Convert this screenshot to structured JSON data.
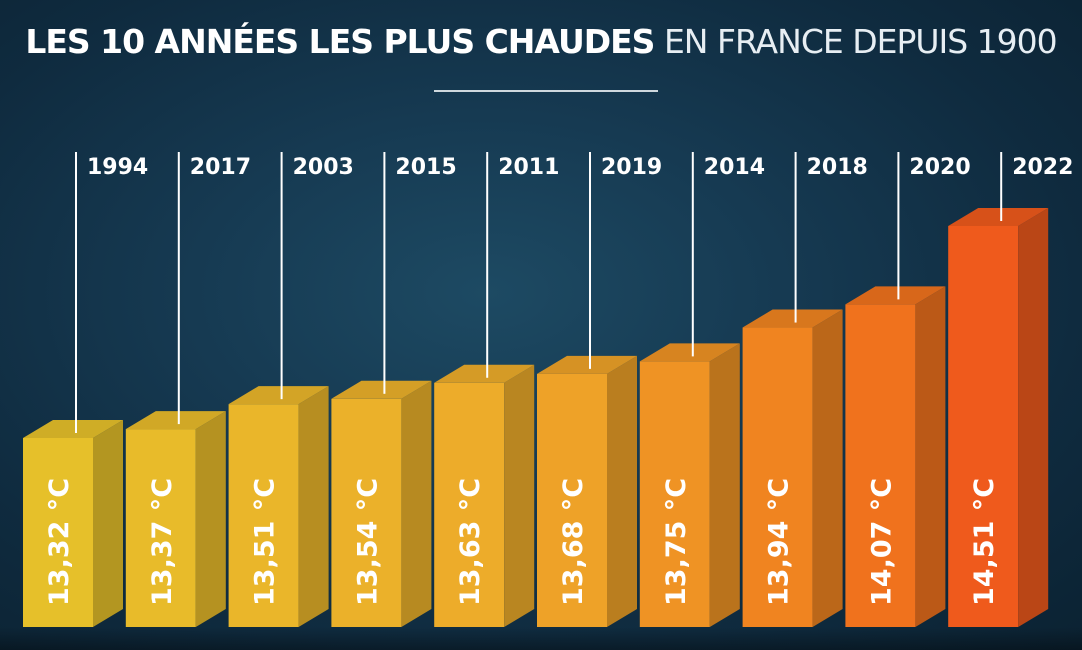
{
  "title": {
    "bold": "LES 10 ANNÉES LES PLUS CHAUDES",
    "light": "EN FRANCE DEPUIS 1900"
  },
  "chart_data": {
    "type": "bar",
    "categories": [
      "1994",
      "2017",
      "2003",
      "2015",
      "2011",
      "2019",
      "2014",
      "2018",
      "2020",
      "2022"
    ],
    "values": [
      13.32,
      13.37,
      13.51,
      13.54,
      13.63,
      13.68,
      13.75,
      13.94,
      14.07,
      14.51
    ],
    "value_labels": [
      "13,32 °C",
      "13,37 °C",
      "13,51 °C",
      "13,54 °C",
      "13,63 °C",
      "13,68 °C",
      "13,75 °C",
      "13,94 °C",
      "14,07 °C",
      "14,51 °C"
    ],
    "unit": "°C",
    "colors": {
      "low": "#e6c02a",
      "mid": "#eea92a",
      "high": "#f07a1e",
      "max": "#ef5a1c"
    }
  }
}
